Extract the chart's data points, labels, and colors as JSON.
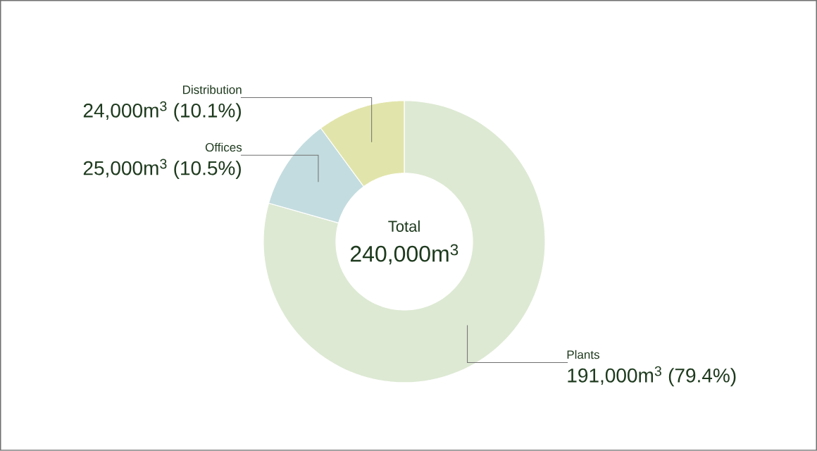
{
  "chart_data": {
    "type": "donut",
    "categories": [
      "Plants",
      "Offices",
      "Distribution"
    ],
    "values": [
      79.4,
      10.5,
      10.1
    ],
    "colors": [
      "#dde9d3",
      "#c3dcdf",
      "#e2e5ab"
    ],
    "value_labels": [
      "191,000m$^{3}$ (79.4%)",
      "25,000m$^{3}$ (10.5%)",
      "24,000m$^{3}$ (10.1%)"
    ],
    "annotations": [
      "Total",
      "240,000m$^{3}$"
    ]
  }
}
